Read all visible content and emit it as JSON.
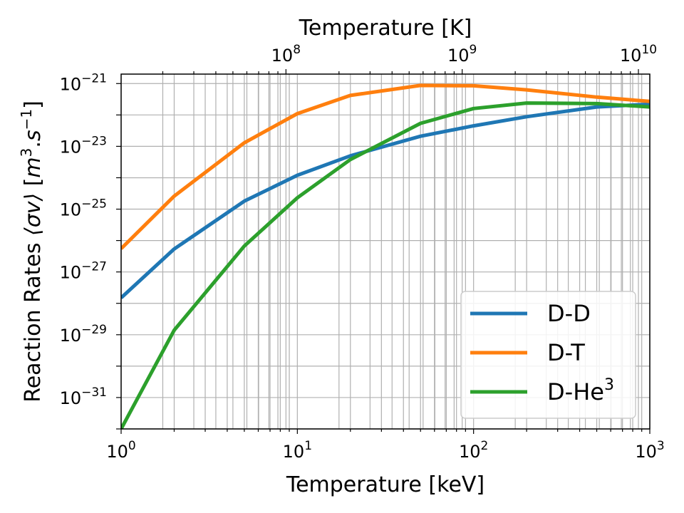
{
  "chart_data": {
    "type": "line",
    "title": "",
    "xlabel": "Temperature [keV]",
    "ylabel_parts": [
      "Reaction Rates ",
      "⟨σv⟩",
      " [",
      "m",
      "3",
      ".",
      "s",
      "−1",
      "]"
    ],
    "top_xlabel": "Temperature [K]",
    "x_scale": "log",
    "y_scale": "log",
    "xlim": [
      1,
      1000
    ],
    "ylim": [
      1e-32,
      2e-21
    ],
    "top_xlim": [
      11604518,
      11604518000
    ],
    "grid": "major and minor",
    "legend_placement": "lower-right",
    "x_ticks": [
      {
        "value": 1,
        "base": "10",
        "exp": "0"
      },
      {
        "value": 10,
        "base": "10",
        "exp": "1"
      },
      {
        "value": 100,
        "base": "10",
        "exp": "2"
      },
      {
        "value": 1000,
        "base": "10",
        "exp": "3"
      }
    ],
    "top_x_ticks": [
      {
        "value": 100000000,
        "base": "10",
        "exp": "8"
      },
      {
        "value": 1000000000,
        "base": "10",
        "exp": "9"
      },
      {
        "value": 10000000000,
        "base": "10",
        "exp": "10"
      }
    ],
    "y_ticks": [
      {
        "value": 1e-21,
        "base": "10",
        "exp": "−21"
      },
      {
        "value": 1e-23,
        "base": "10",
        "exp": "−23"
      },
      {
        "value": 1e-25,
        "base": "10",
        "exp": "−25"
      },
      {
        "value": 1e-27,
        "base": "10",
        "exp": "−27"
      },
      {
        "value": 1e-29,
        "base": "10",
        "exp": "−29"
      },
      {
        "value": 1e-31,
        "base": "10",
        "exp": "−31"
      }
    ],
    "x": [
      1,
      2,
      5,
      10,
      20,
      50,
      100,
      200,
      500,
      1000
    ],
    "series": [
      {
        "name": "D-D",
        "color": "#1f77b4",
        "values": [
          1.5e-28,
          5.4e-27,
          1.8e-25,
          1.2e-24,
          5e-24,
          2.1e-23,
          4.5e-23,
          8.8e-23,
          1.8e-22,
          2.2e-22
        ]
      },
      {
        "name": "D-T",
        "color": "#ff7f0e",
        "values": [
          5.5e-27,
          2.6e-25,
          1.3e-23,
          1.1e-22,
          4.2e-22,
          8.7e-22,
          8.5e-22,
          6.3e-22,
          3.7e-22,
          2.7e-22
        ]
      },
      {
        "name": "D-He",
        "name_sup": "3",
        "color": "#2ca02c",
        "values": [
          1e-32,
          1.4e-29,
          6.7e-27,
          2.3e-25,
          3.8e-24,
          5.4e-23,
          1.6e-22,
          2.4e-22,
          2.3e-22,
          1.8e-22
        ]
      }
    ]
  }
}
